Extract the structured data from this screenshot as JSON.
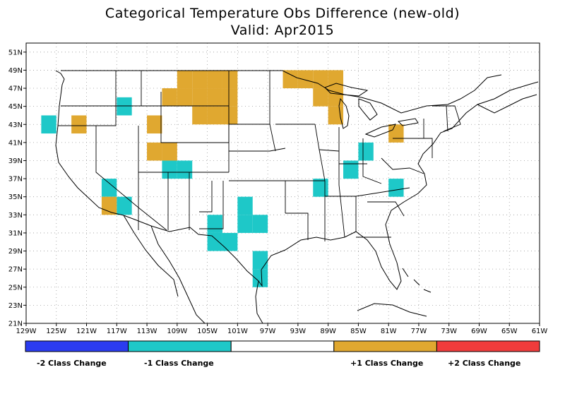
{
  "title": "Categorical Temperature Obs Difference (new-old)",
  "subtitle": "Valid: Apr2015",
  "map": {
    "lon_range": [
      -129,
      -61
    ],
    "lat_range": [
      21,
      52
    ],
    "x_ticks": [
      "129W",
      "125W",
      "121W",
      "117W",
      "113W",
      "109W",
      "105W",
      "101W",
      "97W",
      "93W",
      "89W",
      "85W",
      "81W",
      "77W",
      "73W",
      "69W",
      "65W",
      "61W"
    ],
    "y_ticks": [
      "21N",
      "23N",
      "25N",
      "27N",
      "29N",
      "31N",
      "33N",
      "35N",
      "37N",
      "39N",
      "41N",
      "43N",
      "45N",
      "47N",
      "49N",
      "51N"
    ],
    "grid": "dotted",
    "cell_size_deg": 2,
    "colors": {
      "minus2": "#2b3cf0",
      "minus1": "#1ec8c8",
      "zero": "#ffffff",
      "plus1": "#e0a830",
      "plus2": "#f03c3c"
    },
    "cells": [
      {
        "lon": -126,
        "lat": 43,
        "value": -1
      },
      {
        "lon": -116,
        "lat": 45,
        "value": -1
      },
      {
        "lon": -116,
        "lat": 34,
        "value": -1
      },
      {
        "lon": -118,
        "lat": 36,
        "value": -1
      },
      {
        "lon": -110,
        "lat": 38,
        "value": -1
      },
      {
        "lon": -108,
        "lat": 38,
        "value": -1
      },
      {
        "lon": -104,
        "lat": 32,
        "value": -1
      },
      {
        "lon": -102,
        "lat": 30,
        "value": -1
      },
      {
        "lon": -104,
        "lat": 30,
        "value": -1
      },
      {
        "lon": -100,
        "lat": 32,
        "value": -1
      },
      {
        "lon": -98,
        "lat": 32,
        "value": -1
      },
      {
        "lon": -100,
        "lat": 34,
        "value": -1
      },
      {
        "lon": -98,
        "lat": 28,
        "value": -1
      },
      {
        "lon": -98,
        "lat": 26,
        "value": -1
      },
      {
        "lon": -90,
        "lat": 36,
        "value": -1
      },
      {
        "lon": -86,
        "lat": 38,
        "value": -1
      },
      {
        "lon": -84,
        "lat": 40,
        "value": -1
      },
      {
        "lon": -80,
        "lat": 36,
        "value": -1
      },
      {
        "lon": -122,
        "lat": 43,
        "value": 1
      },
      {
        "lon": -118,
        "lat": 34,
        "value": 1
      },
      {
        "lon": -112,
        "lat": 43,
        "value": 1
      },
      {
        "lon": -110,
        "lat": 40,
        "value": 1
      },
      {
        "lon": -112,
        "lat": 40,
        "value": 1
      },
      {
        "lon": -110,
        "lat": 46,
        "value": 1
      },
      {
        "lon": -108,
        "lat": 48,
        "value": 1
      },
      {
        "lon": -106,
        "lat": 48,
        "value": 1
      },
      {
        "lon": -108,
        "lat": 46,
        "value": 1
      },
      {
        "lon": -106,
        "lat": 46,
        "value": 1
      },
      {
        "lon": -106,
        "lat": 44,
        "value": 1
      },
      {
        "lon": -104,
        "lat": 48,
        "value": 1
      },
      {
        "lon": -102,
        "lat": 48,
        "value": 1
      },
      {
        "lon": -104,
        "lat": 46,
        "value": 1
      },
      {
        "lon": -104,
        "lat": 44,
        "value": 1
      },
      {
        "lon": -102,
        "lat": 44,
        "value": 1
      },
      {
        "lon": -102,
        "lat": 46,
        "value": 1
      },
      {
        "lon": -94,
        "lat": 48,
        "value": 1
      },
      {
        "lon": -92,
        "lat": 48,
        "value": 1
      },
      {
        "lon": -90,
        "lat": 48,
        "value": 1
      },
      {
        "lon": -90,
        "lat": 46,
        "value": 1
      },
      {
        "lon": -88,
        "lat": 48,
        "value": 1
      },
      {
        "lon": -88,
        "lat": 46,
        "value": 1
      },
      {
        "lon": -88,
        "lat": 44,
        "value": 1
      },
      {
        "lon": -80,
        "lat": 42,
        "value": 1
      }
    ]
  },
  "legend": {
    "bins": [
      {
        "key": "minus2",
        "label": "-2 Class Change"
      },
      {
        "key": "minus1",
        "label": "-1 Class Change"
      },
      {
        "key": "zero",
        "label": ""
      },
      {
        "key": "plus1",
        "label": "+1 Class Change"
      },
      {
        "key": "plus2",
        "label": "+2 Class Change"
      }
    ]
  }
}
